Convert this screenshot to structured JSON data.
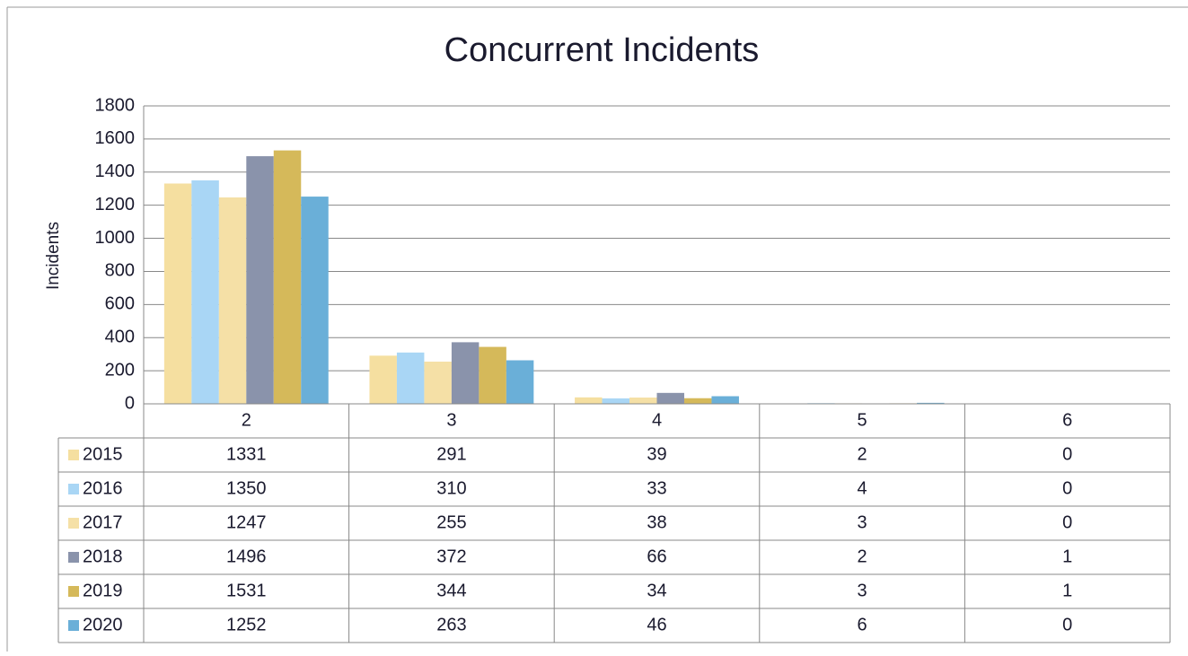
{
  "chart_data": {
    "type": "bar",
    "title": "Concurrent Incidents",
    "y_label": "Incidents",
    "categories": [
      "2",
      "3",
      "4",
      "5",
      "6"
    ],
    "series": [
      {
        "name": "2015",
        "color": "#f5dfa0",
        "values": [
          1331,
          291,
          39,
          2,
          0
        ]
      },
      {
        "name": "2016",
        "color": "#a9d6f5",
        "values": [
          1350,
          310,
          33,
          4,
          0
        ]
      },
      {
        "name": "2017",
        "color": "#f5e0a6",
        "values": [
          1247,
          255,
          38,
          3,
          0
        ]
      },
      {
        "name": "2018",
        "color": "#8a93ab",
        "values": [
          1496,
          372,
          66,
          2,
          1
        ]
      },
      {
        "name": "2019",
        "color": "#d5b95a",
        "values": [
          1531,
          344,
          34,
          3,
          1
        ]
      },
      {
        "name": "2020",
        "color": "#6aafd8",
        "values": [
          1252,
          263,
          46,
          6,
          0
        ]
      }
    ],
    "ylim": [
      0,
      1800
    ],
    "yticks": [
      0,
      200,
      400,
      600,
      800,
      1000,
      1200,
      1400,
      1600,
      1800
    ],
    "grid": true
  }
}
